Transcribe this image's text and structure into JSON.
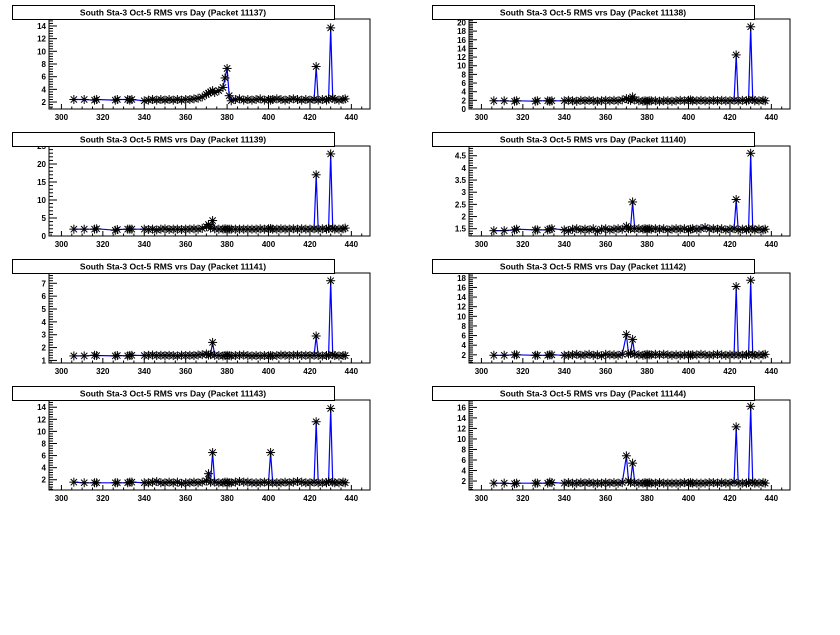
{
  "x_days": [
    306,
    311,
    316,
    317,
    326,
    327,
    332,
    333,
    334,
    340,
    342,
    344,
    346,
    348,
    350,
    352,
    354,
    356,
    358,
    360,
    362,
    364,
    366,
    368,
    370,
    371,
    372,
    373,
    374,
    376,
    378,
    379,
    380,
    381,
    382,
    384,
    386,
    388,
    390,
    392,
    394,
    396,
    398,
    400,
    401,
    402,
    404,
    406,
    408,
    410,
    412,
    414,
    416,
    418,
    420,
    422,
    423,
    424,
    426,
    428,
    429,
    430,
    431,
    432,
    434,
    436,
    437
  ],
  "colors": {
    "line": "#0000ff",
    "marker": "#000000",
    "frame": "#000000"
  },
  "chart_data": [
    {
      "type": "line",
      "title": "South Sta-3 Oct-5 RMS vrs Day (Packet 11137)",
      "xlabel": "",
      "ylabel": "",
      "xlim": [
        294,
        449
      ],
      "ylim": [
        0.9,
        15.1
      ],
      "xticks": [
        300,
        320,
        340,
        360,
        380,
        400,
        420,
        440
      ],
      "yticks": [
        2,
        4,
        6,
        8,
        10,
        12,
        14
      ],
      "values": [
        2.4,
        2.4,
        2.3,
        2.4,
        2.3,
        2.4,
        2.4,
        2.3,
        2.4,
        2.2,
        2.3,
        2.4,
        2.3,
        2.4,
        2.3,
        2.4,
        2.3,
        2.4,
        2.3,
        2.4,
        2.4,
        2.5,
        2.6,
        2.8,
        3.2,
        3.4,
        3.6,
        3.8,
        3.5,
        3.8,
        4.3,
        5.8,
        7.3,
        3.0,
        2.2,
        2.4,
        2.5,
        2.3,
        2.4,
        2.3,
        2.4,
        2.5,
        2.3,
        2.4,
        2.3,
        2.4,
        2.5,
        2.4,
        2.3,
        2.4,
        2.5,
        2.4,
        2.3,
        2.4,
        2.3,
        2.4,
        7.6,
        2.3,
        2.4,
        2.3,
        2.5,
        13.7,
        2.6,
        2.4,
        2.3,
        2.4,
        2.5
      ]
    },
    {
      "type": "line",
      "title": "South Sta-3 Oct-5 RMS vrs Day (Packet 11138)",
      "xlabel": "",
      "ylabel": "",
      "xlim": [
        294,
        449
      ],
      "ylim": [
        0,
        20.8
      ],
      "xticks": [
        300,
        320,
        340,
        360,
        380,
        400,
        420,
        440
      ],
      "yticks": [
        0,
        2,
        4,
        6,
        8,
        10,
        12,
        14,
        16,
        18,
        20
      ],
      "values": [
        1.9,
        1.9,
        1.8,
        1.9,
        1.8,
        1.9,
        1.9,
        1.8,
        1.9,
        1.9,
        2.0,
        1.9,
        1.8,
        2.0,
        1.9,
        2.0,
        1.9,
        1.8,
        1.9,
        2.0,
        1.9,
        2.0,
        1.9,
        2.1,
        2.4,
        2.2,
        2.0,
        2.8,
        2.1,
        1.9,
        1.8,
        1.9,
        1.8,
        1.9,
        1.9,
        1.9,
        1.8,
        1.9,
        1.9,
        1.8,
        1.9,
        2.0,
        1.9,
        2.0,
        2.1,
        1.9,
        1.9,
        2.0,
        1.9,
        1.9,
        2.0,
        1.9,
        2.0,
        1.9,
        1.9,
        2.0,
        12.5,
        1.9,
        2.0,
        1.9,
        2.1,
        19.0,
        2.2,
        1.9,
        1.9,
        2.0,
        1.9
      ]
    },
    {
      "type": "line",
      "title": "South Sta-3 Oct-5 RMS vrs Day (Packet 11139)",
      "xlabel": "",
      "ylabel": "",
      "xlim": [
        294,
        449
      ],
      "ylim": [
        0,
        25
      ],
      "xticks": [
        300,
        320,
        340,
        360,
        380,
        400,
        420,
        440
      ],
      "yticks": [
        0,
        5,
        10,
        15,
        20,
        25
      ],
      "values": [
        1.9,
        1.9,
        1.9,
        2.0,
        1.6,
        1.8,
        1.9,
        1.9,
        1.9,
        1.9,
        1.8,
        1.9,
        1.7,
        1.9,
        2.0,
        1.8,
        1.9,
        1.9,
        1.8,
        1.9,
        1.9,
        2.0,
        1.9,
        2.1,
        2.6,
        3.2,
        2.2,
        4.3,
        2.0,
        1.9,
        1.9,
        2.0,
        1.9,
        1.9,
        1.9,
        1.9,
        1.9,
        1.9,
        1.9,
        1.9,
        1.9,
        2.0,
        1.9,
        2.0,
        2.1,
        1.9,
        1.9,
        2.0,
        1.9,
        1.9,
        2.0,
        1.9,
        2.0,
        1.9,
        1.9,
        2.0,
        17.0,
        1.9,
        2.0,
        1.9,
        2.1,
        22.8,
        2.2,
        1.9,
        1.9,
        2.0,
        2.2
      ]
    },
    {
      "type": "line",
      "title": "South Sta-3 Oct-5 RMS vrs Day (Packet 11140)",
      "xlabel": "",
      "ylabel": "",
      "xlim": [
        294,
        449
      ],
      "ylim": [
        1.2,
        4.9
      ],
      "xticks": [
        300,
        320,
        340,
        360,
        380,
        400,
        420,
        440
      ],
      "yticks": [
        1.5,
        2,
        2.5,
        3,
        3.5,
        4,
        4.5
      ],
      "values": [
        1.42,
        1.42,
        1.45,
        1.48,
        1.45,
        1.45,
        1.45,
        1.48,
        1.5,
        1.45,
        1.42,
        1.48,
        1.5,
        1.45,
        1.48,
        1.45,
        1.5,
        1.4,
        1.48,
        1.5,
        1.45,
        1.48,
        1.5,
        1.48,
        1.6,
        1.5,
        1.5,
        2.6,
        1.5,
        1.5,
        1.48,
        1.5,
        1.48,
        1.5,
        1.48,
        1.5,
        1.48,
        1.5,
        1.45,
        1.48,
        1.5,
        1.48,
        1.5,
        1.45,
        1.48,
        1.5,
        1.48,
        1.5,
        1.55,
        1.48,
        1.5,
        1.48,
        1.5,
        1.45,
        1.48,
        1.5,
        2.7,
        1.45,
        1.48,
        1.45,
        1.5,
        4.6,
        1.5,
        1.45,
        1.48,
        1.45,
        1.48
      ]
    },
    {
      "type": "line",
      "title": "South Sta-3 Oct-5 RMS vrs Day (Packet 11141)",
      "xlabel": "",
      "ylabel": "",
      "xlim": [
        294,
        449
      ],
      "ylim": [
        0.8,
        7.8
      ],
      "xticks": [
        300,
        320,
        340,
        360,
        380,
        400,
        420,
        440
      ],
      "yticks": [
        1,
        2,
        3,
        4,
        5,
        6,
        7
      ],
      "values": [
        1.35,
        1.35,
        1.4,
        1.38,
        1.35,
        1.38,
        1.35,
        1.38,
        1.4,
        1.38,
        1.4,
        1.42,
        1.38,
        1.4,
        1.38,
        1.4,
        1.38,
        1.35,
        1.4,
        1.38,
        1.4,
        1.38,
        1.42,
        1.45,
        1.5,
        1.42,
        1.45,
        2.4,
        1.4,
        1.38,
        1.35,
        1.38,
        1.4,
        1.38,
        1.35,
        1.38,
        1.4,
        1.42,
        1.38,
        1.35,
        1.38,
        1.35,
        1.38,
        1.35,
        1.38,
        1.35,
        1.38,
        1.42,
        1.4,
        1.38,
        1.4,
        1.42,
        1.38,
        1.4,
        1.38,
        1.4,
        2.9,
        1.38,
        1.35,
        1.38,
        1.4,
        7.2,
        1.45,
        1.38,
        1.35,
        1.38,
        1.38
      ]
    },
    {
      "type": "line",
      "title": "South Sta-3 Oct-5 RMS vrs Day (Packet 11142)",
      "xlabel": "",
      "ylabel": "",
      "xlim": [
        294,
        449
      ],
      "ylim": [
        0.3,
        19
      ],
      "xticks": [
        300,
        320,
        340,
        360,
        380,
        400,
        420,
        440
      ],
      "yticks": [
        2,
        4,
        6,
        8,
        10,
        12,
        14,
        16,
        18
      ],
      "values": [
        1.9,
        1.9,
        2.0,
        2.0,
        1.9,
        1.9,
        1.9,
        2.0,
        2.0,
        1.9,
        1.9,
        2.0,
        2.1,
        1.9,
        2.0,
        2.1,
        1.9,
        2.0,
        1.8,
        2.1,
        2.0,
        2.0,
        1.9,
        2.1,
        6.2,
        2.2,
        2.3,
        5.2,
        2.1,
        2.0,
        1.9,
        2.0,
        2.1,
        2.0,
        2.0,
        2.1,
        2.0,
        2.1,
        2.0,
        1.9,
        2.0,
        1.9,
        2.0,
        2.0,
        1.9,
        2.0,
        2.0,
        2.1,
        2.0,
        1.9,
        2.0,
        2.1,
        2.0,
        1.9,
        2.0,
        2.0,
        16.2,
        2.0,
        1.9,
        2.0,
        2.1,
        17.5,
        2.1,
        1.9,
        2.0,
        2.0,
        2.1
      ]
    },
    {
      "type": "line",
      "title": "South Sta-3 Oct-5 RMS vrs Day (Packet 11143)",
      "xlabel": "",
      "ylabel": "",
      "xlim": [
        294,
        449
      ],
      "ylim": [
        0.3,
        15.2
      ],
      "xticks": [
        300,
        320,
        340,
        360,
        380,
        400,
        420,
        440
      ],
      "yticks": [
        2,
        4,
        6,
        8,
        10,
        12,
        14
      ],
      "values": [
        1.6,
        1.5,
        1.5,
        1.5,
        1.5,
        1.5,
        1.5,
        1.6,
        1.6,
        1.5,
        1.5,
        1.6,
        1.7,
        1.5,
        1.5,
        1.6,
        1.5,
        1.6,
        1.4,
        1.5,
        1.5,
        1.6,
        1.5,
        1.6,
        1.8,
        3.0,
        1.6,
        6.5,
        1.6,
        1.5,
        1.5,
        1.6,
        1.6,
        1.5,
        1.5,
        1.6,
        1.7,
        1.6,
        1.6,
        1.5,
        1.5,
        1.5,
        1.6,
        1.5,
        6.5,
        1.5,
        1.5,
        1.5,
        1.6,
        1.5,
        1.6,
        1.7,
        1.6,
        1.5,
        1.5,
        1.6,
        11.6,
        1.5,
        1.5,
        1.5,
        1.7,
        13.8,
        1.6,
        1.5,
        1.5,
        1.6,
        1.5
      ]
    },
    {
      "type": "line",
      "title": "South Sta-3 Oct-5 RMS vrs Day (Packet 11144)",
      "xlabel": "",
      "ylabel": "",
      "xlim": [
        294,
        449
      ],
      "ylim": [
        0.3,
        17.4
      ],
      "xticks": [
        300,
        320,
        340,
        360,
        380,
        400,
        420,
        440
      ],
      "yticks": [
        2,
        4,
        6,
        8,
        10,
        12,
        14,
        16
      ],
      "values": [
        1.6,
        1.6,
        1.5,
        1.6,
        1.6,
        1.6,
        1.6,
        1.8,
        1.7,
        1.6,
        1.7,
        1.6,
        1.6,
        1.7,
        1.6,
        1.7,
        1.6,
        1.6,
        1.6,
        1.7,
        1.6,
        1.7,
        1.6,
        1.7,
        6.8,
        2.0,
        1.7,
        5.4,
        1.7,
        1.6,
        1.6,
        1.7,
        1.6,
        1.7,
        1.6,
        1.6,
        1.7,
        1.6,
        1.6,
        1.6,
        1.6,
        1.6,
        1.7,
        1.6,
        1.7,
        1.6,
        1.6,
        1.6,
        1.6,
        1.7,
        1.7,
        1.6,
        1.7,
        1.6,
        1.6,
        1.8,
        12.3,
        1.6,
        1.6,
        1.6,
        1.7,
        16.2,
        1.8,
        1.6,
        1.6,
        1.7,
        1.6
      ]
    }
  ]
}
